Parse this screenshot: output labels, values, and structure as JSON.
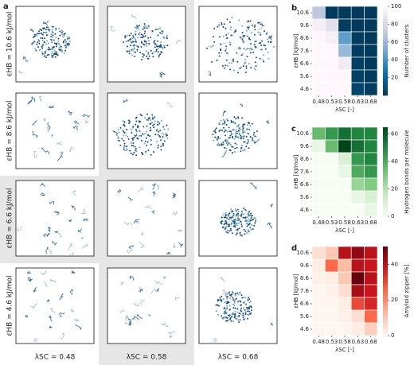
{
  "panel_a": {
    "label": "a",
    "row_labels": [
      "εHB = 10.6 kJ/mol",
      "εHB = 8.6 kJ/mol",
      "εHB = 6.6 kJ/mol",
      "εHB = 4.6 kJ/mol"
    ],
    "col_labels": [
      "λSC = 0.48",
      "λSC = 0.58",
      "λSC = 0.68"
    ]
  },
  "chart_data": [
    {
      "type": "heatmap",
      "label": "b",
      "x": [
        "0.48",
        "0.53",
        "0.58",
        "0.63",
        "0.68"
      ],
      "y": [
        "10.6",
        "9.6",
        "8.6",
        "7.6",
        "6.6",
        "5.6",
        "4.6"
      ],
      "xlabel": "λSC [-]",
      "ylabel": "εHB [kJ/mol]",
      "colorbar_label": "Number of clusters",
      "values": [
        [
          70,
          1,
          1,
          1,
          1
        ],
        [
          95,
          85,
          2,
          1,
          1
        ],
        [
          100,
          95,
          45,
          2,
          1
        ],
        [
          100,
          100,
          60,
          2,
          1
        ],
        [
          100,
          100,
          92,
          3,
          1
        ],
        [
          100,
          100,
          100,
          4,
          1
        ],
        [
          100,
          100,
          100,
          6,
          2
        ]
      ],
      "zlim": [
        0,
        100
      ],
      "cticks": [
        20,
        40,
        60,
        80,
        100
      ],
      "colors": [
        "#023858",
        "#0570b0",
        "#74a9cf",
        "#d0d1e6",
        "#fff7fb"
      ]
    },
    {
      "type": "heatmap",
      "label": "c",
      "x": [
        "0.48",
        "0.53",
        "0.58",
        "0.63",
        "0.68"
      ],
      "y": [
        "10.6",
        "9.6",
        "8.6",
        "7.6",
        "6.6",
        "5.6",
        "4.6"
      ],
      "xlabel": "λSC [-]",
      "ylabel": "εHB [kJ/mol]",
      "colorbar_label": "Hydrogen bonds per molecule",
      "values": [
        [
          35,
          45,
          55,
          50,
          50
        ],
        [
          5,
          35,
          65,
          55,
          50
        ],
        [
          0,
          0,
          10,
          45,
          50
        ],
        [
          0,
          0,
          5,
          40,
          45
        ],
        [
          0,
          0,
          0,
          25,
          30
        ],
        [
          0,
          0,
          0,
          5,
          10
        ],
        [
          0,
          0,
          0,
          0,
          5
        ]
      ],
      "zlim": [
        0,
        65
      ],
      "cticks": [
        0,
        20,
        40,
        60
      ],
      "colors": [
        "#f7fcf5",
        "#c7e9c0",
        "#74c476",
        "#238b45",
        "#00441b"
      ]
    },
    {
      "type": "heatmap",
      "label": "d",
      "x": [
        "0.48",
        "0.53",
        "0.58",
        "0.63",
        "0.68"
      ],
      "y": [
        "10.6",
        "9.6",
        "8.6",
        "7.6",
        "6.6",
        "5.6",
        "4.6"
      ],
      "xlabel": "λSC [-]",
      "ylabel": "εHB [kJ/mol]",
      "colorbar_label": "Amyloid zipper [%]",
      "values": [
        [
          5,
          10,
          40,
          45,
          40
        ],
        [
          2,
          25,
          12,
          40,
          38
        ],
        [
          1,
          2,
          10,
          50,
          40
        ],
        [
          0,
          1,
          5,
          42,
          38
        ],
        [
          0,
          0,
          2,
          30,
          35
        ],
        [
          0,
          0,
          1,
          5,
          25
        ],
        [
          0,
          0,
          0,
          2,
          8
        ]
      ],
      "zlim": [
        0,
        50
      ],
      "cticks": [
        0,
        20,
        40
      ],
      "colors": [
        "#fff5f0",
        "#fcbba1",
        "#fb6a4a",
        "#cb181d",
        "#67000d"
      ]
    }
  ]
}
